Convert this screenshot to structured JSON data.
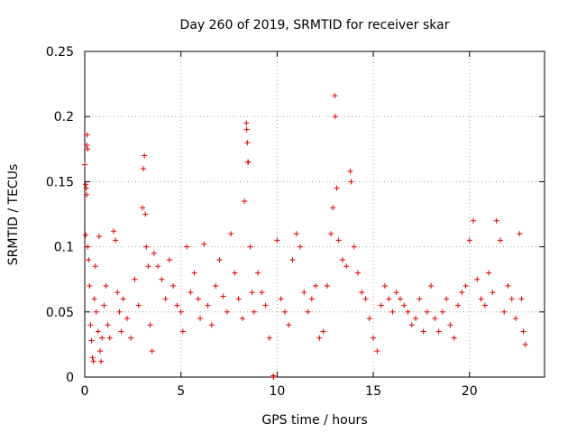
{
  "chart_data": {
    "type": "scatter",
    "title": "Day 260 of 2019, SRMTID for receiver skar",
    "xlabel": "GPS time / hours",
    "ylabel": "SRMTID / TECUs",
    "xlim": [
      0,
      23.9
    ],
    "ylim": [
      0,
      0.25
    ],
    "xticks": [
      0,
      5,
      10,
      15,
      20
    ],
    "yticks": [
      0,
      0.05,
      0.1,
      0.15,
      0.2,
      0.25
    ],
    "xtick_labels": [
      "0",
      "5",
      "10",
      "15",
      "20"
    ],
    "ytick_labels": [
      "0",
      "0.05",
      "0.1",
      "0.15",
      "0.2",
      "0.25"
    ],
    "grid": true,
    "marker": "+",
    "color": "#e00000",
    "series": [
      {
        "name": "SRMTID",
        "points": [
          [
            0.0,
            0.163
          ],
          [
            0.05,
            0.148
          ],
          [
            0.08,
            0.145
          ],
          [
            0.1,
            0.178
          ],
          [
            0.12,
            0.186
          ],
          [
            0.15,
            0.175
          ],
          [
            0.1,
            0.14
          ],
          [
            0.05,
            0.109
          ],
          [
            0.15,
            0.1
          ],
          [
            0.2,
            0.09
          ],
          [
            0.25,
            0.07
          ],
          [
            0.3,
            0.04
          ],
          [
            0.35,
            0.028
          ],
          [
            0.4,
            0.015
          ],
          [
            0.45,
            0.012
          ],
          [
            0.5,
            0.06
          ],
          [
            0.55,
            0.085
          ],
          [
            0.6,
            0.05
          ],
          [
            0.7,
            0.035
          ],
          [
            0.75,
            0.108
          ],
          [
            0.8,
            0.02
          ],
          [
            0.85,
            0.012
          ],
          [
            0.9,
            0.03
          ],
          [
            1.0,
            0.055
          ],
          [
            1.1,
            0.07
          ],
          [
            1.2,
            0.04
          ],
          [
            1.3,
            0.03
          ],
          [
            1.5,
            0.112
          ],
          [
            1.6,
            0.105
          ],
          [
            1.7,
            0.065
          ],
          [
            1.8,
            0.05
          ],
          [
            1.9,
            0.035
          ],
          [
            2.0,
            0.06
          ],
          [
            2.2,
            0.045
          ],
          [
            2.4,
            0.03
          ],
          [
            2.6,
            0.075
          ],
          [
            2.8,
            0.055
          ],
          [
            3.0,
            0.13
          ],
          [
            3.05,
            0.16
          ],
          [
            3.1,
            0.17
          ],
          [
            3.15,
            0.125
          ],
          [
            3.2,
            0.1
          ],
          [
            3.3,
            0.085
          ],
          [
            3.4,
            0.04
          ],
          [
            3.5,
            0.02
          ],
          [
            3.6,
            0.095
          ],
          [
            3.8,
            0.085
          ],
          [
            4.0,
            0.075
          ],
          [
            4.2,
            0.06
          ],
          [
            4.4,
            0.09
          ],
          [
            4.6,
            0.07
          ],
          [
            4.8,
            0.055
          ],
          [
            5.0,
            0.05
          ],
          [
            5.1,
            0.035
          ],
          [
            5.3,
            0.1
          ],
          [
            5.5,
            0.065
          ],
          [
            5.7,
            0.08
          ],
          [
            5.9,
            0.06
          ],
          [
            6.0,
            0.045
          ],
          [
            6.2,
            0.102
          ],
          [
            6.4,
            0.055
          ],
          [
            6.6,
            0.04
          ],
          [
            6.8,
            0.07
          ],
          [
            7.0,
            0.09
          ],
          [
            7.2,
            0.062
          ],
          [
            7.4,
            0.05
          ],
          [
            7.6,
            0.11
          ],
          [
            7.8,
            0.08
          ],
          [
            8.0,
            0.06
          ],
          [
            8.2,
            0.045
          ],
          [
            8.3,
            0.135
          ],
          [
            8.4,
            0.195
          ],
          [
            8.42,
            0.19
          ],
          [
            8.45,
            0.18
          ],
          [
            8.48,
            0.165
          ],
          [
            8.5,
            0.165
          ],
          [
            8.6,
            0.1
          ],
          [
            8.7,
            0.065
          ],
          [
            8.8,
            0.05
          ],
          [
            9.0,
            0.08
          ],
          [
            9.2,
            0.065
          ],
          [
            9.4,
            0.055
          ],
          [
            9.6,
            0.03
          ],
          [
            9.8,
            0.001
          ],
          [
            9.82,
            0.0
          ],
          [
            10.0,
            0.105
          ],
          [
            10.2,
            0.06
          ],
          [
            10.4,
            0.05
          ],
          [
            10.6,
            0.04
          ],
          [
            10.8,
            0.09
          ],
          [
            11.0,
            0.11
          ],
          [
            11.2,
            0.1
          ],
          [
            11.4,
            0.065
          ],
          [
            11.6,
            0.05
          ],
          [
            11.8,
            0.06
          ],
          [
            12.0,
            0.07
          ],
          [
            12.2,
            0.03
          ],
          [
            12.4,
            0.035
          ],
          [
            12.6,
            0.07
          ],
          [
            12.8,
            0.11
          ],
          [
            12.9,
            0.13
          ],
          [
            13.0,
            0.216
          ],
          [
            13.02,
            0.2
          ],
          [
            13.1,
            0.145
          ],
          [
            13.2,
            0.105
          ],
          [
            13.4,
            0.09
          ],
          [
            13.6,
            0.085
          ],
          [
            13.8,
            0.158
          ],
          [
            13.85,
            0.15
          ],
          [
            14.0,
            0.1
          ],
          [
            14.2,
            0.08
          ],
          [
            14.4,
            0.065
          ],
          [
            14.6,
            0.06
          ],
          [
            14.8,
            0.045
          ],
          [
            15.0,
            0.03
          ],
          [
            15.2,
            0.02
          ],
          [
            15.4,
            0.055
          ],
          [
            15.6,
            0.07
          ],
          [
            15.8,
            0.06
          ],
          [
            16.0,
            0.05
          ],
          [
            16.2,
            0.065
          ],
          [
            16.4,
            0.06
          ],
          [
            16.6,
            0.055
          ],
          [
            16.8,
            0.05
          ],
          [
            17.0,
            0.04
          ],
          [
            17.2,
            0.045
          ],
          [
            17.4,
            0.06
          ],
          [
            17.6,
            0.035
          ],
          [
            17.8,
            0.05
          ],
          [
            18.0,
            0.07
          ],
          [
            18.2,
            0.045
          ],
          [
            18.4,
            0.035
          ],
          [
            18.6,
            0.05
          ],
          [
            18.8,
            0.06
          ],
          [
            19.0,
            0.04
          ],
          [
            19.2,
            0.03
          ],
          [
            19.4,
            0.055
          ],
          [
            19.6,
            0.065
          ],
          [
            19.8,
            0.07
          ],
          [
            20.0,
            0.105
          ],
          [
            20.2,
            0.12
          ],
          [
            20.4,
            0.075
          ],
          [
            20.6,
            0.06
          ],
          [
            20.8,
            0.055
          ],
          [
            21.0,
            0.08
          ],
          [
            21.2,
            0.065
          ],
          [
            21.4,
            0.12
          ],
          [
            21.6,
            0.105
          ],
          [
            21.8,
            0.05
          ],
          [
            22.0,
            0.07
          ],
          [
            22.2,
            0.06
          ],
          [
            22.4,
            0.045
          ],
          [
            22.6,
            0.11
          ],
          [
            22.7,
            0.06
          ],
          [
            22.8,
            0.035
          ],
          [
            22.9,
            0.025
          ]
        ]
      }
    ]
  }
}
